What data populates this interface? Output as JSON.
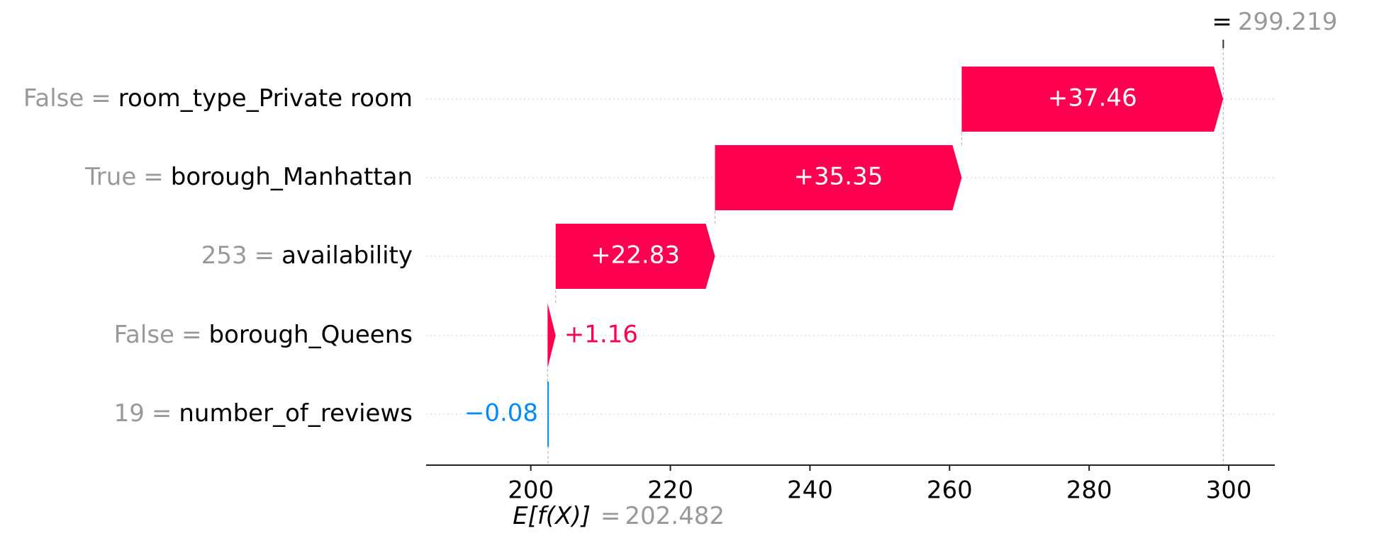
{
  "chart_data": {
    "type": "waterfall",
    "features": [
      "room_type_Private room",
      "borough_Manhattan",
      "availability",
      "borough_Queens",
      "number_of_reviews"
    ],
    "feature_values": [
      "False",
      "True",
      "253",
      "False",
      "19"
    ],
    "equals": "=",
    "values": [
      37.46,
      35.35,
      22.83,
      1.16,
      -0.08
    ],
    "value_labels": [
      "+37.46",
      "+35.35",
      "+22.83",
      "+1.16",
      "−0.08"
    ],
    "base_label": "E[f(X)]",
    "base_value": 202.482,
    "final_value": 299.219,
    "positive_color": "#ff0051",
    "negative_color": "#008bfb",
    "xlim": [
      185,
      306.6
    ],
    "xticks": [
      200,
      220,
      240,
      260,
      280,
      300
    ]
  }
}
